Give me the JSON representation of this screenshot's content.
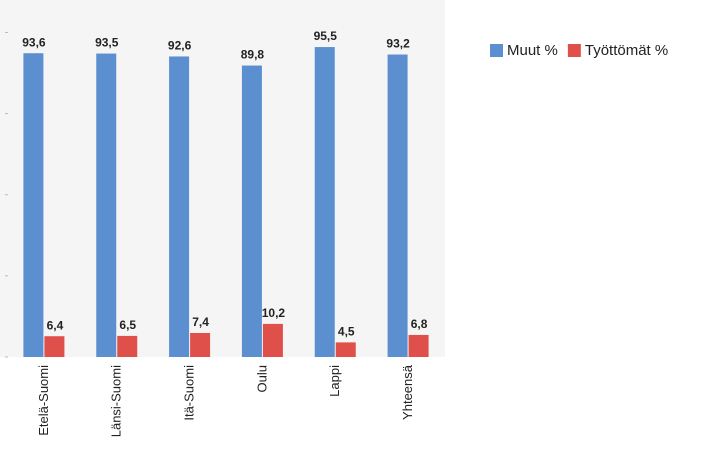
{
  "chart_data": {
    "type": "bar",
    "categories": [
      "Etelä-Suomi",
      "Länsi-Suomi",
      "Itä-Suomi",
      "Oulu",
      "Lappi",
      "Yhteensä"
    ],
    "series": [
      {
        "name": "Muut %",
        "color": "#5b8fd0",
        "values": [
          93.6,
          93.5,
          92.6,
          89.8,
          95.5,
          93.2
        ],
        "value_labels": [
          "93,6",
          "93,5",
          "92,6",
          "89,8",
          "95,5",
          "93,2"
        ]
      },
      {
        "name": "Työttömät %",
        "color": "#e0504a",
        "values": [
          6.4,
          6.5,
          7.4,
          10.2,
          4.5,
          6.8
        ],
        "value_labels": [
          "6,4",
          "6,5",
          "7,4",
          "10,2",
          "4,5",
          "6,8"
        ]
      }
    ],
    "ylim": [
      0,
      110
    ],
    "yticks": [
      0,
      25,
      50,
      75,
      100
    ],
    "legend": "top-right"
  }
}
